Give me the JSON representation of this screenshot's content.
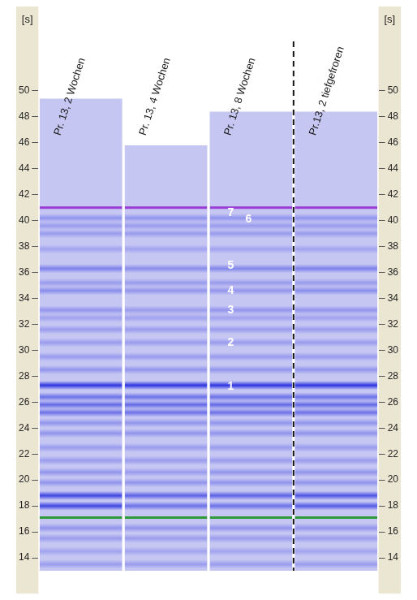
{
  "chart_data": {
    "type": "gel",
    "y_label": "[s]",
    "y2_label": "[s]",
    "ylim": [
      13,
      51
    ],
    "yticks": [
      14,
      16,
      18,
      20,
      22,
      24,
      26,
      28,
      30,
      32,
      34,
      36,
      38,
      40,
      42,
      44,
      46,
      48,
      50
    ],
    "y2lim": [
      13,
      51
    ],
    "y2ticks": [
      14,
      16,
      18,
      20,
      22,
      24,
      26,
      28,
      30,
      32,
      34,
      36,
      38,
      40,
      42,
      44,
      46,
      48,
      50
    ],
    "grid": false,
    "categories": [
      "Pr. 13, 2 Wochen",
      "Pr. 13, 4 Wochen",
      "Pr. 13, 8 Wochen",
      "Pr.13, 2 tiefgefroren"
    ],
    "lane_range": [
      [
        13,
        49.4
      ],
      [
        13,
        45.8
      ],
      [
        13,
        48.4
      ],
      [
        13,
        48.4
      ]
    ],
    "color": "#c6c6f3",
    "bands": [
      {
        "position": 13.5,
        "intensity": [
          0.3,
          0.3,
          0.3,
          0.3
        ]
      },
      {
        "position": 14.5,
        "intensity": [
          0.25,
          0.25,
          0.25,
          0.25
        ]
      },
      {
        "position": 15.5,
        "intensity": [
          0.3,
          0.3,
          0.3,
          0.3
        ]
      },
      {
        "position": 16.3,
        "intensity": [
          0.35,
          0.35,
          0.35,
          0.35
        ]
      },
      {
        "position": 18.0,
        "intensity": [
          0.9,
          0.6,
          0.6,
          0.75
        ]
      },
      {
        "position": 18.8,
        "intensity": [
          0.9,
          0.7,
          0.7,
          0.8
        ]
      },
      {
        "position": 19.8,
        "intensity": [
          0.35,
          0.35,
          0.35,
          0.35
        ]
      },
      {
        "position": 20.6,
        "intensity": [
          0.35,
          0.3,
          0.35,
          0.35
        ]
      },
      {
        "position": 21.5,
        "intensity": [
          0.3,
          0.3,
          0.3,
          0.3
        ]
      },
      {
        "position": 22.5,
        "intensity": [
          0.3,
          0.3,
          0.3,
          0.3
        ]
      },
      {
        "position": 23.6,
        "intensity": [
          0.35,
          0.35,
          0.35,
          0.35
        ]
      },
      {
        "position": 24.4,
        "intensity": [
          0.35,
          0.35,
          0.35,
          0.35
        ]
      },
      {
        "position": 25.2,
        "intensity": [
          0.6,
          0.6,
          0.6,
          0.6
        ]
      },
      {
        "position": 25.8,
        "intensity": [
          0.65,
          0.65,
          0.65,
          0.65
        ]
      },
      {
        "position": 26.4,
        "intensity": [
          0.6,
          0.6,
          0.6,
          0.6
        ]
      },
      {
        "position": 27.3,
        "intensity": [
          1,
          1,
          1,
          1
        ]
      },
      {
        "position": 28.5,
        "intensity": [
          0.35,
          0.35,
          0.35,
          0.35
        ]
      },
      {
        "position": 29.5,
        "intensity": [
          0.3,
          0.3,
          0.3,
          0.3
        ]
      },
      {
        "position": 30.6,
        "intensity": [
          0.3,
          0.3,
          0.3,
          0.3
        ]
      },
      {
        "position": 31.6,
        "intensity": [
          0.3,
          0.3,
          0.3,
          0.3
        ]
      },
      {
        "position": 32.5,
        "intensity": [
          0.25,
          0.25,
          0.25,
          0.25
        ]
      },
      {
        "position": 33.1,
        "intensity": [
          0.35,
          0.3,
          0.35,
          0.35
        ]
      },
      {
        "position": 34.6,
        "intensity": [
          0.4,
          0.35,
          0.35,
          0.4
        ]
      },
      {
        "position": 35.2,
        "intensity": [
          0.3,
          0.3,
          0.3,
          0.3
        ]
      },
      {
        "position": 36.3,
        "intensity": [
          0.5,
          0.4,
          0.45,
          0.5
        ]
      },
      {
        "position": 37.8,
        "intensity": [
          0.25,
          0.25,
          0.25,
          0.25
        ]
      },
      {
        "position": 39.0,
        "intensity": [
          0.3,
          0.3,
          0.3,
          0.3
        ]
      },
      {
        "position": 39.6,
        "intensity": [
          0.3,
          0.3,
          0.3,
          0.3
        ]
      },
      {
        "position": 40.2,
        "intensity": [
          0.35,
          0.35,
          0.35,
          0.35
        ]
      }
    ],
    "markers": {
      "values": [
        17.1,
        41.0
      ],
      "colors": [
        "#2e9a3a",
        "#9a3bd6"
      ]
    },
    "peak_labels": [
      {
        "label": "1",
        "value": 27.2
      },
      {
        "label": "2",
        "value": 30.6
      },
      {
        "label": "3",
        "value": 33.1
      },
      {
        "label": "4",
        "value": 34.6
      },
      {
        "label": "5",
        "value": 36.5
      },
      {
        "label": "6",
        "value": 40.1
      },
      {
        "label": "7",
        "value": 40.6
      }
    ]
  }
}
